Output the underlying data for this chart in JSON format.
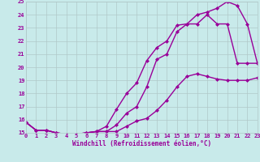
{
  "xlabel": "Windchill (Refroidissement éolien,°C)",
  "xlim": [
    0,
    23
  ],
  "ylim": [
    15,
    25
  ],
  "xticks": [
    0,
    1,
    2,
    3,
    4,
    5,
    6,
    7,
    8,
    9,
    10,
    11,
    12,
    13,
    14,
    15,
    16,
    17,
    18,
    19,
    20,
    21,
    22,
    23
  ],
  "yticks": [
    15,
    16,
    17,
    18,
    19,
    20,
    21,
    22,
    23,
    24,
    25
  ],
  "bg_color": "#c8eaea",
  "grid_color": "#b0c8c8",
  "line_color": "#990099",
  "line1_x": [
    0,
    1,
    2,
    3,
    4,
    5,
    6,
    7,
    8,
    9,
    10,
    11,
    12,
    13,
    14,
    15,
    16,
    17,
    18,
    19,
    20,
    21,
    22,
    23
  ],
  "line1_y": [
    15.8,
    15.2,
    15.2,
    15.0,
    14.9,
    14.9,
    15.0,
    15.1,
    15.1,
    15.1,
    15.5,
    15.9,
    16.1,
    16.7,
    17.5,
    18.5,
    19.3,
    19.5,
    19.3,
    19.1,
    19.0,
    19.0,
    19.0,
    19.2
  ],
  "line2_x": [
    0,
    1,
    2,
    3,
    4,
    5,
    6,
    7,
    8,
    9,
    10,
    11,
    12,
    13,
    14,
    15,
    16,
    17,
    18,
    19,
    20,
    21,
    22,
    23
  ],
  "line2_y": [
    15.8,
    15.2,
    15.2,
    15.0,
    14.9,
    14.9,
    15.0,
    15.1,
    15.1,
    15.6,
    16.5,
    17.0,
    18.5,
    20.6,
    21.0,
    22.7,
    23.3,
    23.3,
    24.0,
    23.3,
    23.3,
    20.3,
    20.3,
    20.3
  ],
  "line3_x": [
    0,
    1,
    2,
    3,
    4,
    5,
    6,
    7,
    8,
    9,
    10,
    11,
    12,
    13,
    14,
    15,
    16,
    17,
    18,
    19,
    20,
    21,
    22,
    23
  ],
  "line3_y": [
    15.8,
    15.2,
    15.2,
    15.0,
    14.9,
    14.9,
    15.0,
    15.1,
    15.5,
    16.8,
    18.0,
    18.8,
    20.5,
    21.5,
    22.0,
    23.2,
    23.3,
    24.0,
    24.2,
    24.5,
    25.0,
    24.7,
    23.3,
    20.3
  ],
  "marker": "D",
  "markersize": 2.5,
  "linewidth": 1.0
}
